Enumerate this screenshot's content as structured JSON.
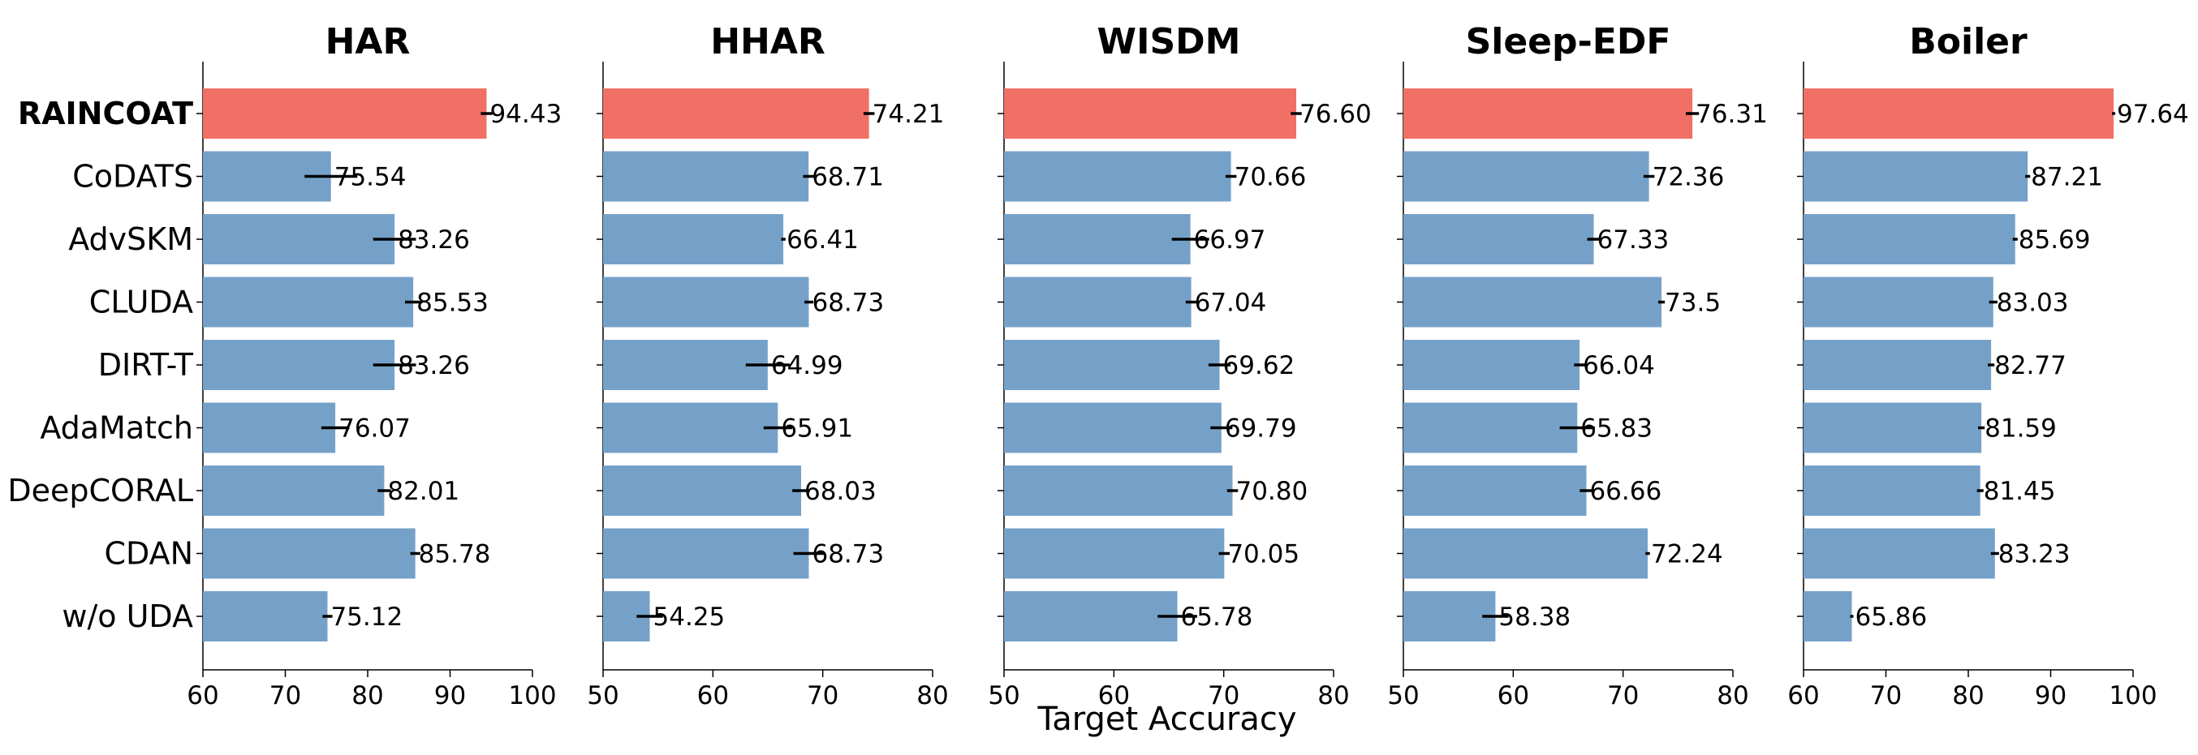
{
  "colors": {
    "highlight": "#f07065",
    "base": "#75a1c9"
  },
  "x_axis_label": "Target Accuracy",
  "chart_data": [
    {
      "type": "bar",
      "orientation": "horizontal",
      "title": "HAR",
      "categories": [
        "RAINCOAT",
        "CoDATS",
        "AdvSKM",
        "CLUDA",
        "DIRT-T",
        "AdaMatch",
        "DeepCORAL",
        "CDAN",
        "w/o UDA"
      ],
      "values": [
        94.43,
        75.54,
        83.26,
        85.53,
        83.26,
        76.07,
        82.01,
        85.78,
        75.12
      ],
      "value_labels": [
        "94.43",
        "75.54",
        "83.26",
        "85.53",
        "83.26",
        "76.07",
        "82.01",
        "85.78",
        "75.12"
      ],
      "errors": [
        0.7,
        3.2,
        2.6,
        1.0,
        2.6,
        1.7,
        0.8,
        0.6,
        0.6
      ],
      "xlim": [
        60,
        100
      ],
      "xticks": [
        60,
        70,
        80,
        90,
        100
      ],
      "xlabel": "",
      "ylabel": ""
    },
    {
      "type": "bar",
      "orientation": "horizontal",
      "title": "HHAR",
      "categories": [
        "RAINCOAT",
        "CoDATS",
        "AdvSKM",
        "CLUDA",
        "DIRT-T",
        "AdaMatch",
        "DeepCORAL",
        "CDAN",
        "w/o UDA"
      ],
      "values": [
        74.21,
        68.71,
        66.41,
        68.73,
        64.99,
        65.91,
        68.03,
        68.73,
        54.25
      ],
      "value_labels": [
        "74.21",
        "68.71",
        "66.41",
        "68.73",
        "64.99",
        "65.91",
        "68.03",
        "68.73",
        "54.25"
      ],
      "errors": [
        0.5,
        0.5,
        0.2,
        0.4,
        2.0,
        1.3,
        0.8,
        1.4,
        1.2
      ],
      "xlim": [
        50,
        80
      ],
      "xticks": [
        50,
        60,
        70,
        80
      ],
      "xlabel": "",
      "ylabel": ""
    },
    {
      "type": "bar",
      "orientation": "horizontal",
      "title": "WISDM",
      "categories": [
        "RAINCOAT",
        "CoDATS",
        "AdvSKM",
        "CLUDA",
        "DIRT-T",
        "AdaMatch",
        "DeepCORAL",
        "CDAN",
        "w/o UDA"
      ],
      "values": [
        76.6,
        70.66,
        66.97,
        67.04,
        69.62,
        69.79,
        70.8,
        70.05,
        65.78
      ],
      "value_labels": [
        "76.60",
        "70.66",
        "66.97",
        "67.04",
        "69.62",
        "69.79",
        "70.80",
        "70.05",
        "65.78"
      ],
      "errors": [
        0.5,
        0.5,
        1.7,
        0.5,
        1.0,
        1.0,
        0.5,
        0.5,
        1.8
      ],
      "xlim": [
        50,
        80
      ],
      "xticks": [
        50,
        60,
        70,
        80
      ],
      "xlabel": "",
      "ylabel": ""
    },
    {
      "type": "bar",
      "orientation": "horizontal",
      "title": "Sleep-EDF",
      "categories": [
        "RAINCOAT",
        "CoDATS",
        "AdvSKM",
        "CLUDA",
        "DIRT-T",
        "AdaMatch",
        "DeepCORAL",
        "CDAN",
        "w/o UDA"
      ],
      "values": [
        76.31,
        72.36,
        67.33,
        73.5,
        66.04,
        65.83,
        66.66,
        72.24,
        58.38
      ],
      "value_labels": [
        "76.31",
        "72.36",
        "67.33",
        "73.5",
        "66.04",
        "65.83",
        "66.66",
        "72.24",
        "58.38"
      ],
      "errors": [
        0.6,
        0.5,
        0.6,
        0.3,
        0.5,
        1.6,
        0.6,
        0.2,
        1.2
      ],
      "xlim": [
        50,
        80
      ],
      "xticks": [
        50,
        60,
        70,
        80
      ],
      "xlabel": "",
      "ylabel": ""
    },
    {
      "type": "bar",
      "orientation": "horizontal",
      "title": "Boiler",
      "categories": [
        "RAINCOAT",
        "CoDATS",
        "AdvSKM",
        "CLUDA",
        "DIRT-T",
        "AdaMatch",
        "DeepCORAL",
        "CDAN",
        "w/o UDA"
      ],
      "values": [
        97.64,
        87.21,
        85.69,
        83.03,
        82.77,
        81.59,
        81.45,
        83.23,
        65.86
      ],
      "value_labels": [
        "97.64",
        "87.21",
        "85.69",
        "83.03",
        "82.77",
        "81.59",
        "81.45",
        "83.23",
        "65.86"
      ],
      "errors": [
        0.2,
        0.3,
        0.3,
        0.5,
        0.4,
        0.4,
        0.4,
        0.5,
        0.2
      ],
      "xlim": [
        60,
        100
      ],
      "xticks": [
        60,
        70,
        80,
        90,
        100
      ],
      "xlabel": "",
      "ylabel": ""
    }
  ]
}
